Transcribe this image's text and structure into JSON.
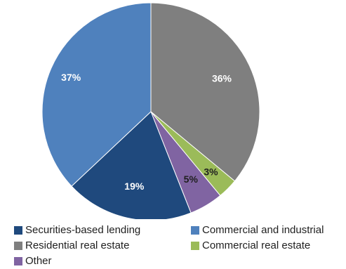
{
  "chart_data": {
    "type": "pie",
    "title": "",
    "start_angle_deg": 0,
    "direction": "clockwise",
    "slices": [
      {
        "label": "Residential real estate",
        "value": 36,
        "display": "36%",
        "color": "#7f7f7f"
      },
      {
        "label": "Commercial real estate",
        "value": 3,
        "display": "3%",
        "color": "#9bbb59"
      },
      {
        "label": "Other",
        "value": 5,
        "display": "5%",
        "color": "#8064a2"
      },
      {
        "label": "Securities-based lending",
        "value": 19,
        "display": "19%",
        "color": "#1f497d"
      },
      {
        "label": "Commercial and industrial",
        "value": 37,
        "display": "37%",
        "color": "#4f81bd"
      }
    ],
    "legend": {
      "placement": "bottom",
      "order": [
        "Securities-based lending",
        "Commercial and industrial",
        "Residential real estate",
        "Commercial real estate",
        "Other"
      ]
    }
  }
}
